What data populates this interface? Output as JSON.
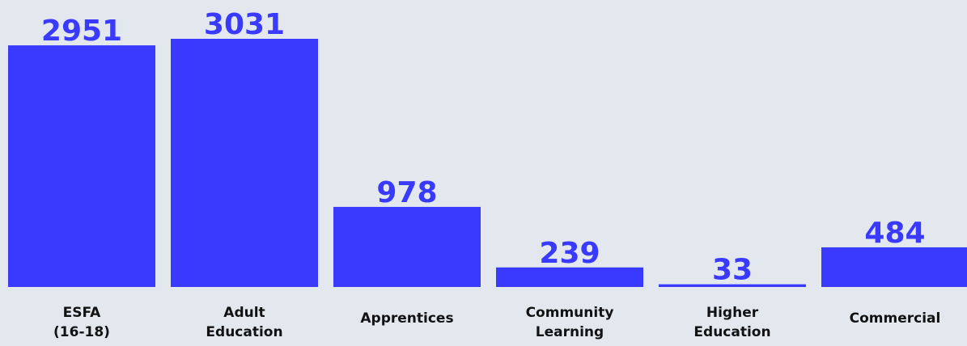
{
  "chart_data": {
    "type": "bar",
    "title": "",
    "xlabel": "",
    "ylabel": "",
    "categories": [
      [
        "ESFA",
        "(16-18)"
      ],
      [
        "Adult",
        "Education"
      ],
      [
        "Apprentices"
      ],
      [
        "Community",
        "Learning"
      ],
      [
        "Higher",
        "Education"
      ],
      [
        "Commercial"
      ]
    ],
    "values": [
      2951,
      3031,
      978,
      239,
      33,
      484
    ],
    "ylim": [
      0,
      3031
    ],
    "grid": false,
    "legend": "none",
    "colors": {
      "bar": "#3a3aff",
      "value_label": "#3a3aff",
      "category_label": "#121212",
      "background": "#e2e8ee"
    }
  }
}
